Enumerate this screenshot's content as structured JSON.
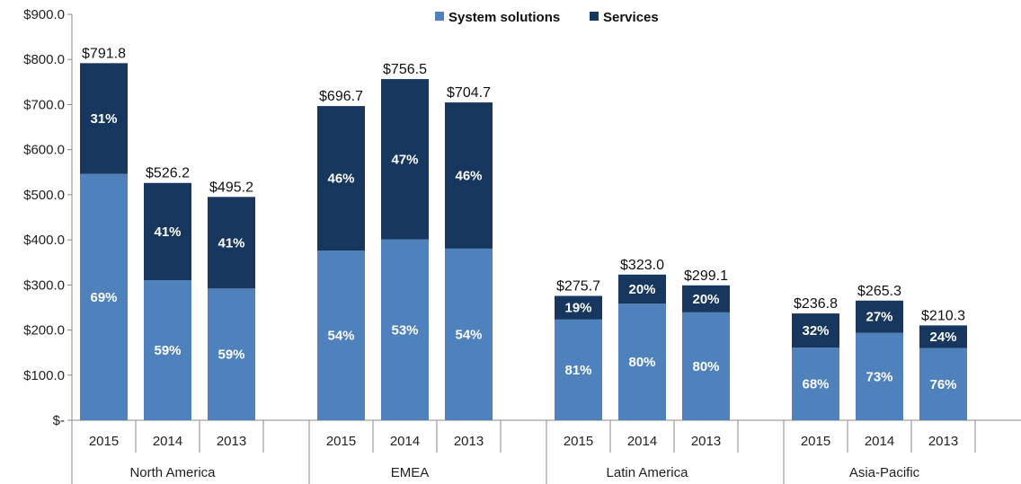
{
  "chart_data": {
    "type": "bar",
    "stacked": true,
    "title": "",
    "xlabel": "",
    "ylabel": "",
    "ylim": [
      0,
      900
    ],
    "y_tick_labels": [
      "$-",
      "$100.0",
      "$200.0",
      "$300.0",
      "$400.0",
      "$500.0",
      "$600.0",
      "$700.0",
      "$800.0",
      "$900.0"
    ],
    "legend": {
      "position": "top-center",
      "items": [
        "System solutions",
        "Services"
      ]
    },
    "colors": {
      "System solutions": "#4F81BD",
      "Services": "#17375E"
    },
    "grid": false,
    "groups": [
      {
        "region": "North America",
        "bars": [
          {
            "year": "2015",
            "total": 791.8,
            "total_label": "$791.8",
            "system_pct": 69,
            "services_pct": 31,
            "system_label": "69%",
            "services_label": "31%"
          },
          {
            "year": "2014",
            "total": 526.2,
            "total_label": "$526.2",
            "system_pct": 59,
            "services_pct": 41,
            "system_label": "59%",
            "services_label": "41%"
          },
          {
            "year": "2013",
            "total": 495.2,
            "total_label": "$495.2",
            "system_pct": 59,
            "services_pct": 41,
            "system_label": "59%",
            "services_label": "41%"
          }
        ]
      },
      {
        "region": "EMEA",
        "bars": [
          {
            "year": "2015",
            "total": 696.7,
            "total_label": "$696.7",
            "system_pct": 54,
            "services_pct": 46,
            "system_label": "54%",
            "services_label": "46%"
          },
          {
            "year": "2014",
            "total": 756.5,
            "total_label": "$756.5",
            "system_pct": 53,
            "services_pct": 47,
            "system_label": "53%",
            "services_label": "47%"
          },
          {
            "year": "2013",
            "total": 704.7,
            "total_label": "$704.7",
            "system_pct": 54,
            "services_pct": 46,
            "system_label": "54%",
            "services_label": "46%"
          }
        ]
      },
      {
        "region": "Latin America",
        "bars": [
          {
            "year": "2015",
            "total": 275.7,
            "total_label": "$275.7",
            "system_pct": 81,
            "services_pct": 19,
            "system_label": "81%",
            "services_label": "19%"
          },
          {
            "year": "2014",
            "total": 323.0,
            "total_label": "$323.0",
            "system_pct": 80,
            "services_pct": 20,
            "system_label": "80%",
            "services_label": "20%"
          },
          {
            "year": "2013",
            "total": 299.1,
            "total_label": "$299.1",
            "system_pct": 80,
            "services_pct": 20,
            "system_label": "80%",
            "services_label": "20%"
          }
        ]
      },
      {
        "region": "Asia-Pacific",
        "bars": [
          {
            "year": "2015",
            "total": 236.8,
            "total_label": "$236.8",
            "system_pct": 68,
            "services_pct": 32,
            "system_label": "68%",
            "services_label": "32%"
          },
          {
            "year": "2014",
            "total": 265.3,
            "total_label": "$265.3",
            "system_pct": 73,
            "services_pct": 27,
            "system_label": "73%",
            "services_label": "27%"
          },
          {
            "year": "2013",
            "total": 210.3,
            "total_label": "$210.3",
            "system_pct": 76,
            "services_pct": 24,
            "system_label": "76%",
            "services_label": "24%"
          }
        ]
      }
    ]
  }
}
